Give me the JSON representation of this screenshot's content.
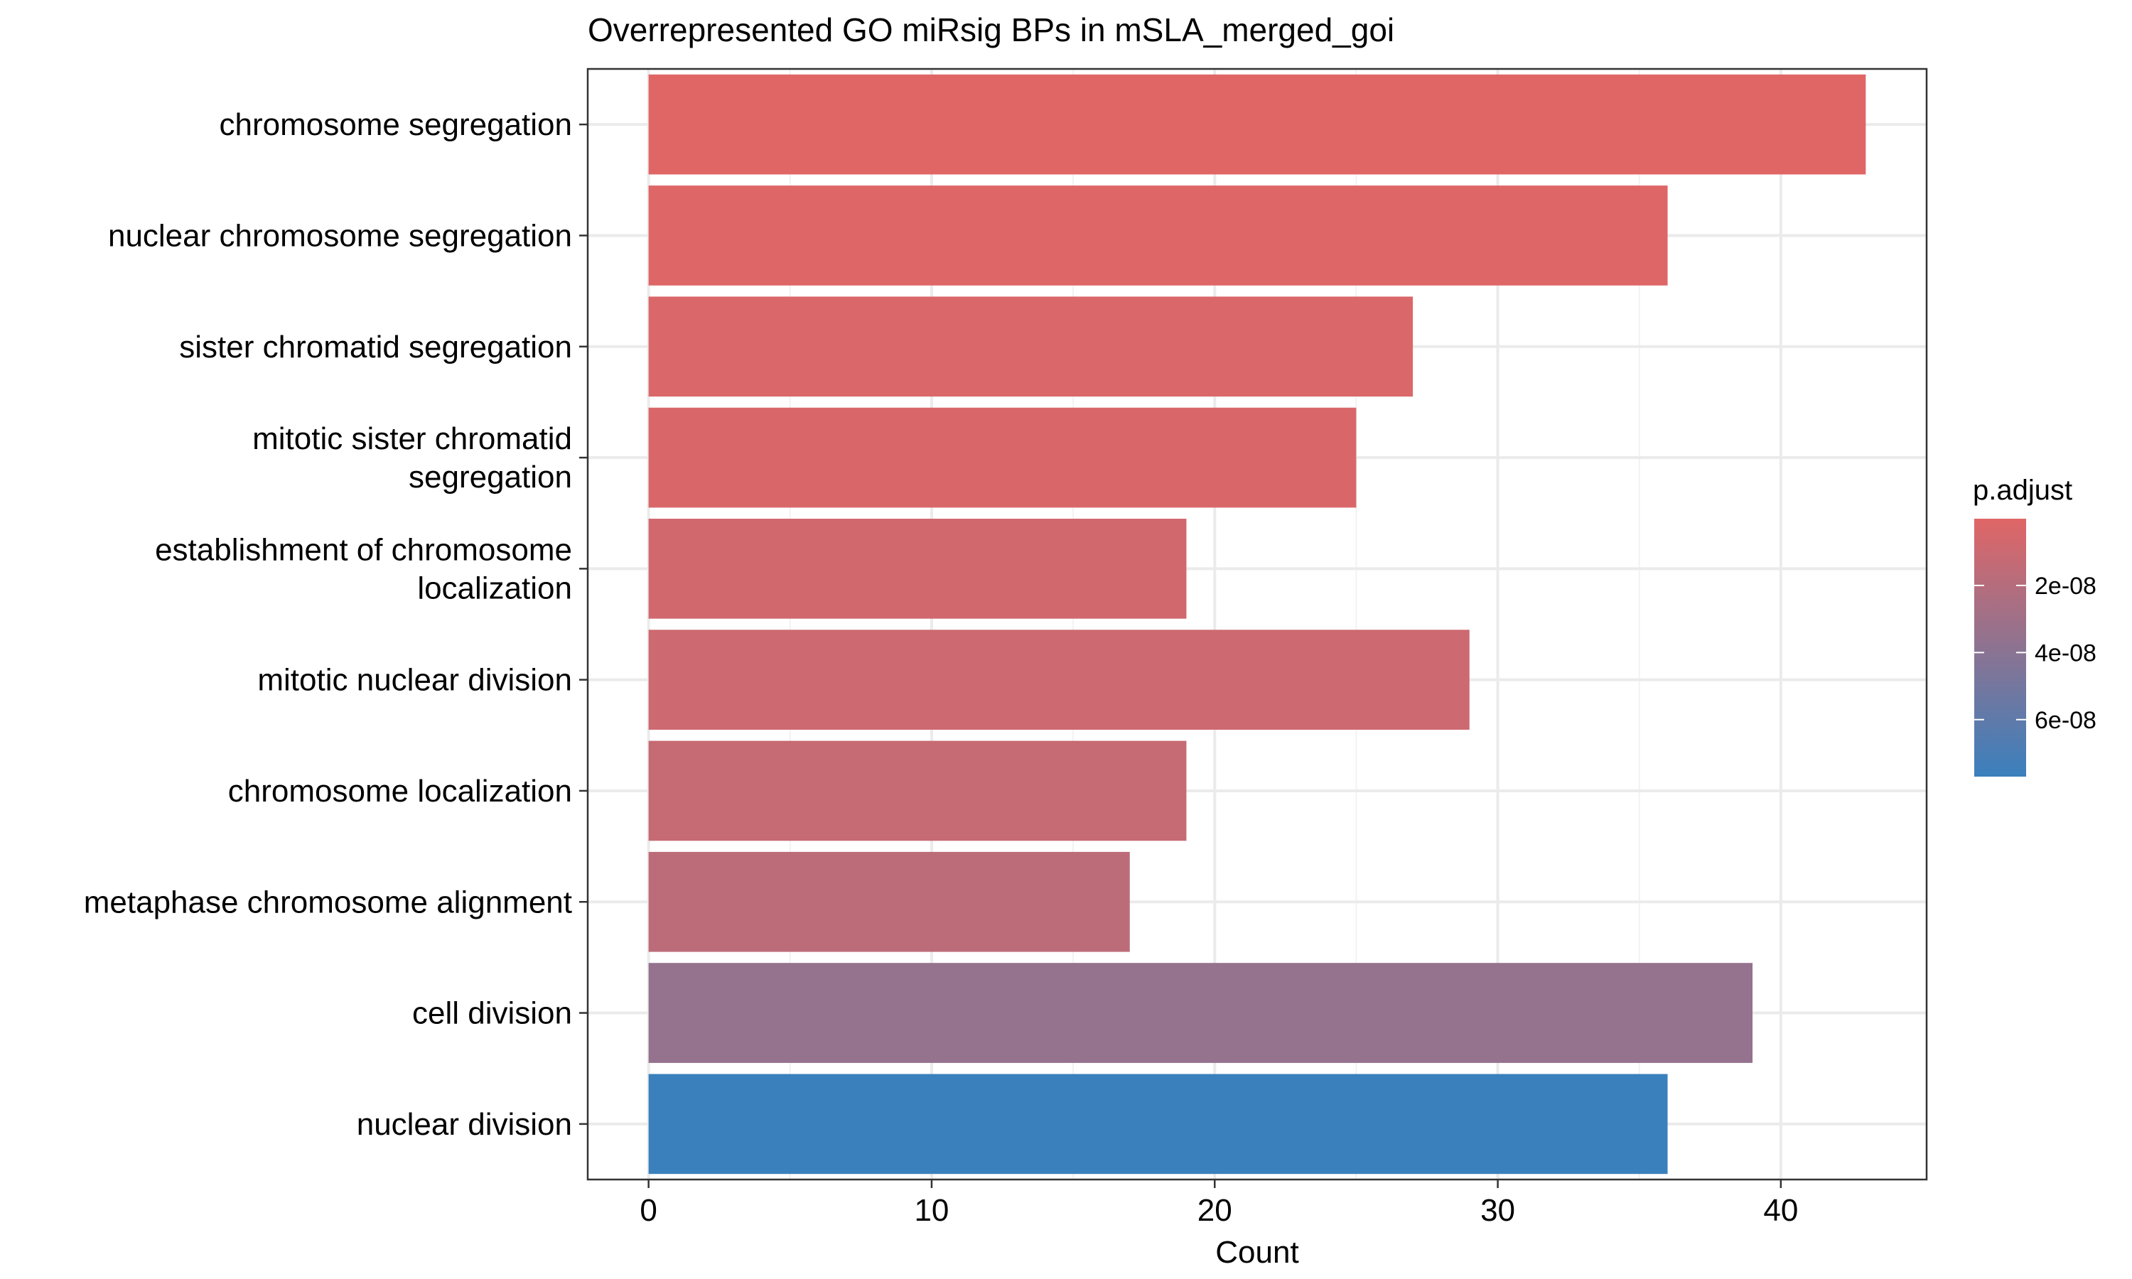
{
  "chart_data": {
    "type": "bar",
    "orientation": "horizontal",
    "title": "Overrepresented GO miRsig BPs in mSLA_merged_goi",
    "xlabel": "Count",
    "ylabel": "",
    "xlim": [
      -2.15,
      45.15
    ],
    "xticks": [
      0,
      10,
      20,
      30,
      40
    ],
    "grid": true,
    "categories": [
      [
        "chromosome segregation"
      ],
      [
        "nuclear chromosome segregation"
      ],
      [
        "sister chromatid segregation"
      ],
      [
        "mitotic sister chromatid",
        "segregation"
      ],
      [
        "establishment of chromosome",
        "localization"
      ],
      [
        "mitotic nuclear division"
      ],
      [
        "chromosome localization"
      ],
      [
        "metaphase chromosome alignment"
      ],
      [
        "cell division"
      ],
      [
        "nuclear division"
      ]
    ],
    "values": [
      43,
      36,
      27,
      25,
      19,
      29,
      19,
      17,
      39,
      36
    ],
    "p_adjust": [
      1e-10,
      8e-10,
      3e-09,
      3.5e-09,
      7e-09,
      9e-09,
      1.2e-08,
      1.7e-08,
      3.5e-08,
      7.7e-08
    ],
    "legend": {
      "title": "p.adjust",
      "position": "right",
      "ticks": [
        2e-08,
        4e-08,
        6e-08
      ],
      "tick_labels": [
        "2e-08",
        "4e-08",
        "6e-08"
      ],
      "domain": [
        1e-10,
        7.7e-08
      ],
      "color_low": "#E06666",
      "color_high": "#3A80BD"
    }
  }
}
